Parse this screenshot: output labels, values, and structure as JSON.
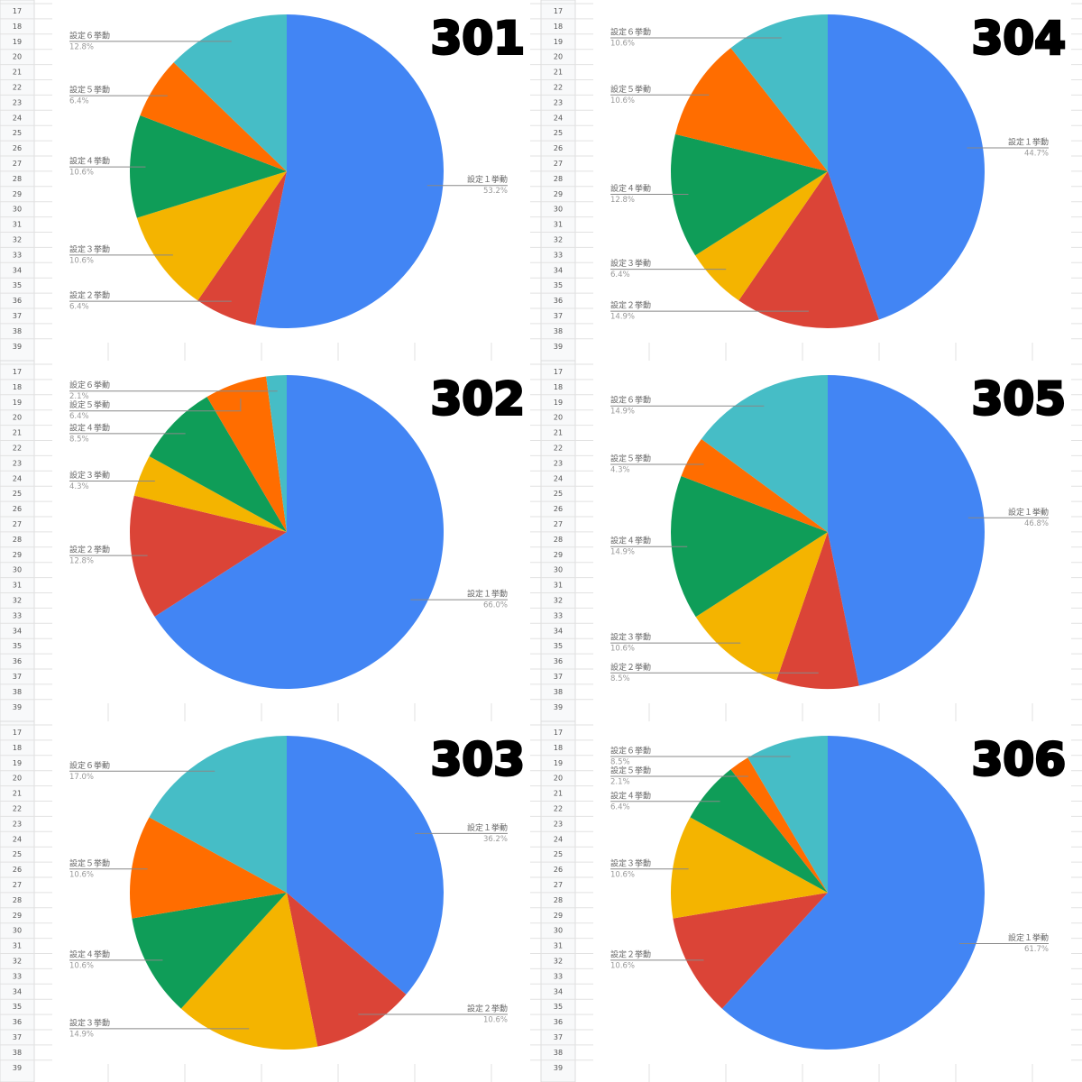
{
  "chart_data": [
    {
      "type": "pie",
      "title": "301",
      "categories": [
        "設定１挙動",
        "設定２挙動",
        "設定３挙動",
        "設定４挙動",
        "設定５挙動",
        "設定６挙動"
      ],
      "values": [
        53.2,
        6.4,
        10.6,
        10.6,
        6.4,
        12.8
      ],
      "value_labels": [
        "53.2%",
        "6.4%",
        "10.6%",
        "10.6%",
        "6.4%",
        "12.8%"
      ],
      "colors": [
        "#4285f4",
        "#db4437",
        "#f4b400",
        "#0f9d58",
        "#ff6d00",
        "#46bdc6"
      ]
    },
    {
      "type": "pie",
      "title": "304",
      "categories": [
        "設定１挙動",
        "設定２挙動",
        "設定３挙動",
        "設定４挙動",
        "設定５挙動",
        "設定６挙動"
      ],
      "values": [
        44.7,
        14.9,
        6.4,
        12.8,
        10.6,
        10.6
      ],
      "value_labels": [
        "44.7%",
        "14.9%",
        "6.4%",
        "12.8%",
        "10.6%",
        "10.6%"
      ],
      "colors": [
        "#4285f4",
        "#db4437",
        "#f4b400",
        "#0f9d58",
        "#ff6d00",
        "#46bdc6"
      ]
    },
    {
      "type": "pie",
      "title": "302",
      "categories": [
        "設定１挙動",
        "設定２挙動",
        "設定３挙動",
        "設定４挙動",
        "設定５挙動",
        "設定６挙動"
      ],
      "values": [
        66.0,
        12.8,
        4.3,
        8.5,
        6.4,
        2.1
      ],
      "value_labels": [
        "66.0%",
        "12.8%",
        "4.3%",
        "8.5%",
        "6.4%",
        "2.1%"
      ],
      "colors": [
        "#4285f4",
        "#db4437",
        "#f4b400",
        "#0f9d58",
        "#ff6d00",
        "#46bdc6"
      ]
    },
    {
      "type": "pie",
      "title": "305",
      "categories": [
        "設定１挙動",
        "設定２挙動",
        "設定３挙動",
        "設定４挙動",
        "設定５挙動",
        "設定６挙動"
      ],
      "values": [
        46.8,
        8.5,
        10.6,
        14.9,
        4.3,
        14.9
      ],
      "value_labels": [
        "46.8%",
        "8.5%",
        "10.6%",
        "14.9%",
        "4.3%",
        "14.9%"
      ],
      "colors": [
        "#4285f4",
        "#db4437",
        "#f4b400",
        "#0f9d58",
        "#ff6d00",
        "#46bdc6"
      ]
    },
    {
      "type": "pie",
      "title": "303",
      "categories": [
        "設定１挙動",
        "設定２挙動",
        "設定３挙動",
        "設定４挙動",
        "設定５挙動",
        "設定６挙動"
      ],
      "values": [
        36.2,
        10.6,
        14.9,
        10.6,
        10.6,
        17.0
      ],
      "value_labels": [
        "36.2%",
        "10.6%",
        "14.9%",
        "10.6%",
        "10.6%",
        "17.0%"
      ],
      "colors": [
        "#4285f4",
        "#db4437",
        "#f4b400",
        "#0f9d58",
        "#ff6d00",
        "#46bdc6"
      ]
    },
    {
      "type": "pie",
      "title": "306",
      "categories": [
        "設定１挙動",
        "設定２挙動",
        "設定３挙動",
        "設定４挙動",
        "設定５挙動",
        "設定６挙動"
      ],
      "values": [
        61.7,
        10.6,
        10.6,
        6.4,
        2.1,
        8.5
      ],
      "value_labels": [
        "61.7%",
        "10.6%",
        "10.6%",
        "6.4%",
        "2.1%",
        "8.5%"
      ],
      "colors": [
        "#4285f4",
        "#db4437",
        "#f4b400",
        "#0f9d58",
        "#ff6d00",
        "#46bdc6"
      ]
    }
  ],
  "spreadsheets": [
    {
      "row_numbers": [
        17,
        18,
        19,
        20,
        21,
        22,
        23,
        24,
        25,
        26,
        27,
        28,
        29,
        30,
        31,
        32,
        33,
        34,
        35,
        36,
        37,
        38,
        39
      ]
    },
    {
      "row_numbers": [
        17,
        18,
        19,
        20,
        21,
        22,
        23,
        24,
        25,
        26,
        27,
        28,
        29,
        30,
        31,
        32,
        33,
        34,
        35,
        36,
        37,
        38,
        39
      ]
    },
    {
      "row_numbers": [
        17,
        18,
        19,
        20,
        21,
        22,
        23,
        24,
        25,
        26,
        27,
        28,
        29,
        30,
        31,
        32,
        33,
        34,
        35,
        36,
        37,
        38,
        39
      ]
    },
    {
      "row_numbers": [
        17,
        18,
        19,
        20,
        21,
        22,
        23,
        24,
        25,
        26,
        27,
        28,
        29,
        30,
        31,
        32,
        33,
        34,
        35,
        36,
        37,
        38,
        39
      ]
    },
    {
      "row_numbers": [
        17,
        18,
        19,
        20,
        21,
        22,
        23,
        24,
        25,
        26,
        27,
        28,
        29,
        30,
        31,
        32,
        33,
        34,
        35,
        36,
        37,
        38,
        39
      ]
    },
    {
      "row_numbers": [
        17,
        18,
        19,
        20,
        21,
        22,
        23,
        24,
        25,
        26,
        27,
        28,
        29,
        30,
        31,
        32,
        33,
        34,
        35,
        36,
        37,
        38,
        39
      ]
    }
  ]
}
